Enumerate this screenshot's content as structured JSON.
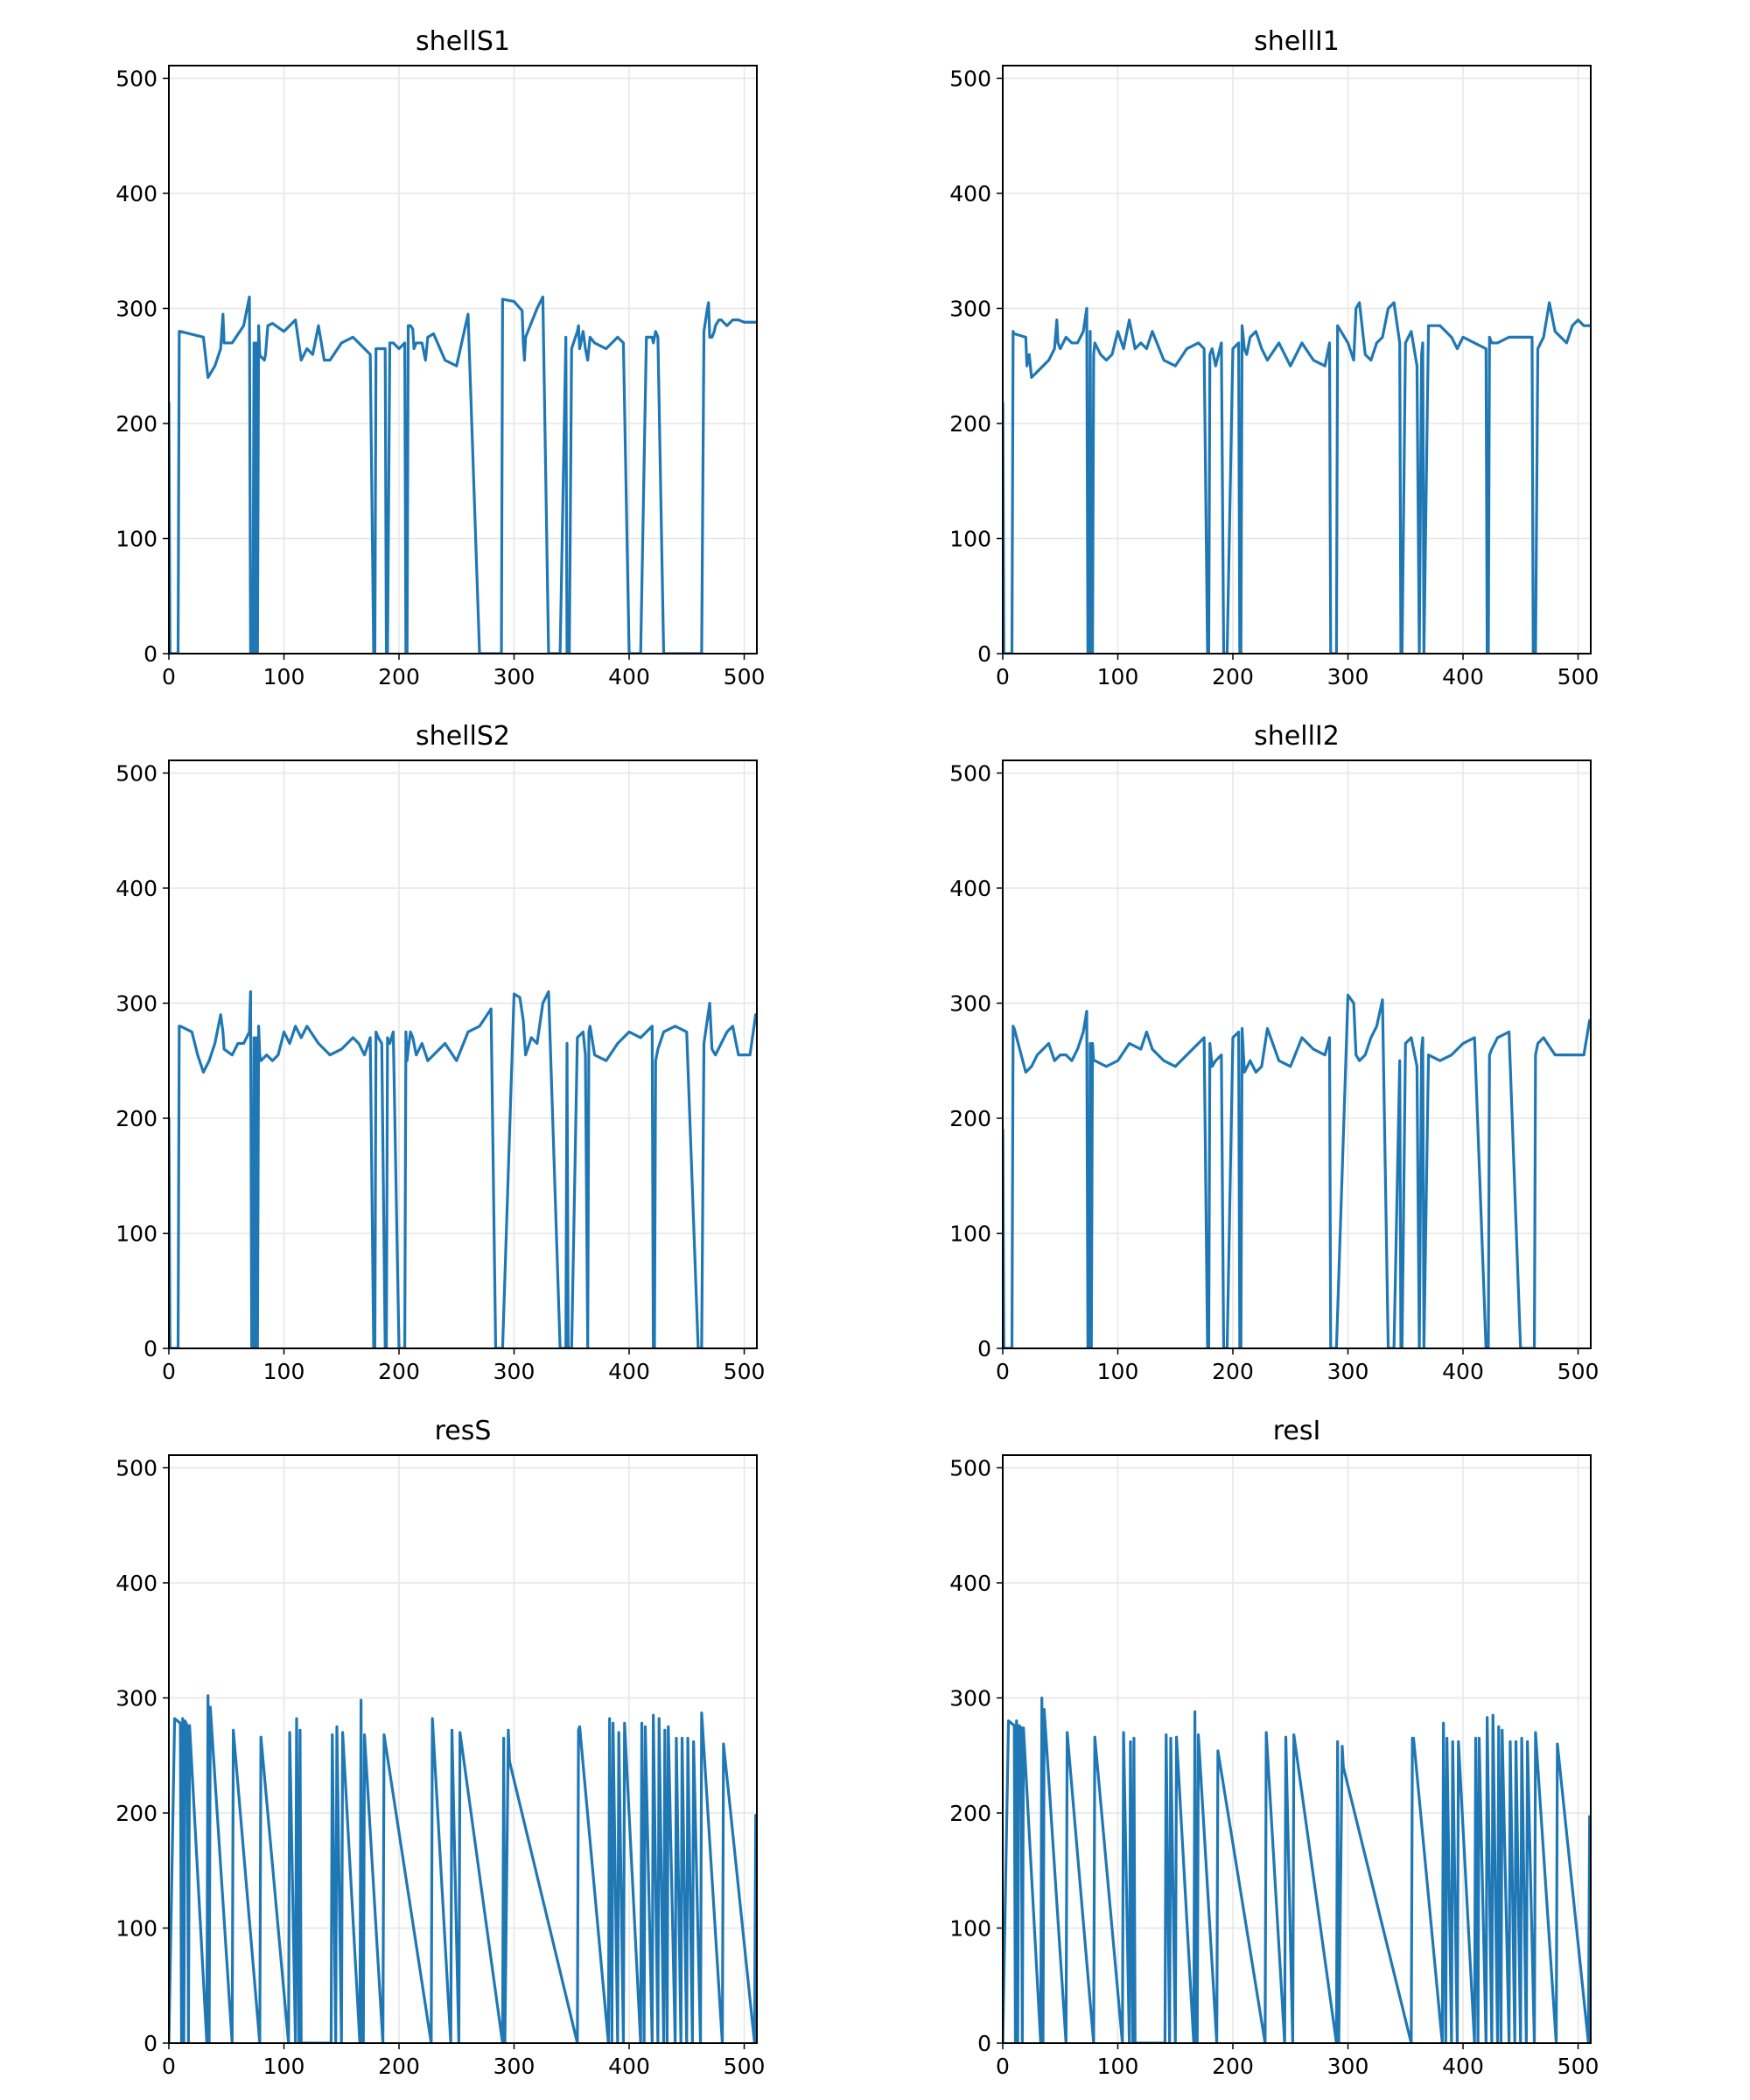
{
  "figure": {
    "line_color": "#1f77b4",
    "grid": true
  },
  "chart_data": [
    {
      "type": "line",
      "title": "shellS1",
      "xlim": [
        0,
        511
      ],
      "ylim": [
        0,
        511
      ],
      "xticks": [
        0,
        100,
        200,
        300,
        400,
        500
      ],
      "yticks": [
        0,
        100,
        200,
        300,
        400,
        500
      ],
      "x": [
        0,
        1,
        2,
        3,
        4,
        5,
        6,
        7,
        8,
        9,
        10,
        30,
        34,
        40,
        45,
        47,
        48,
        55,
        65,
        70,
        71,
        73,
        74,
        75,
        76,
        77,
        78,
        79,
        80,
        83,
        84,
        86,
        90,
        100,
        110,
        115,
        120,
        125,
        130,
        135,
        140,
        150,
        160,
        165,
        170,
        175,
        178,
        179,
        180,
        182,
        188,
        189,
        190,
        192,
        195,
        200,
        205,
        206,
        207,
        208,
        210,
        212,
        213,
        215,
        220,
        223,
        225,
        230,
        240,
        250,
        260,
        270,
        280,
        284,
        285,
        287,
        288,
        289,
        290,
        300,
        307,
        308,
        309,
        310,
        320,
        325,
        330,
        340,
        345,
        346,
        347,
        348,
        350,
        355,
        356,
        357,
        360,
        362,
        364,
        365,
        366,
        370,
        380,
        390,
        395,
        400,
        410,
        415,
        420,
        421,
        422,
        423,
        425,
        430,
        440,
        450,
        460,
        461,
        462,
        463,
        465,
        468,
        469,
        470,
        472,
        474,
        475,
        478,
        480,
        485,
        490,
        495,
        500,
        505,
        510,
        511
      ],
      "values": [
        218,
        0,
        0,
        0,
        0,
        0,
        0,
        0,
        0,
        280,
        280,
        275,
        240,
        250,
        265,
        295,
        270,
        270,
        285,
        310,
        0,
        0,
        270,
        0,
        270,
        0,
        285,
        260,
        258,
        255,
        260,
        285,
        287,
        280,
        290,
        255,
        265,
        260,
        285,
        255,
        255,
        270,
        275,
        270,
        265,
        260,
        0,
        0,
        265,
        265,
        265,
        0,
        0,
        270,
        270,
        265,
        270,
        0,
        0,
        285,
        285,
        282,
        265,
        270,
        270,
        255,
        275,
        278,
        255,
        250,
        295,
        0,
        0,
        0,
        0,
        0,
        0,
        0,
        308,
        306,
        298,
        270,
        255,
        275,
        300,
        310,
        0,
        0,
        275,
        0,
        0,
        0,
        265,
        280,
        285,
        265,
        280,
        265,
        255,
        265,
        275,
        270,
        265,
        275,
        270,
        0,
        0,
        275,
        275,
        270,
        275,
        280,
        275,
        0,
        0,
        0,
        0,
        0,
        0,
        0,
        280,
        300,
        305,
        275,
        275,
        280,
        285,
        290,
        290,
        285,
        290,
        290,
        288,
        288,
        288,
        288
      ],
      "xlabel": "",
      "ylabel": ""
    },
    {
      "type": "line",
      "title": "shellI1",
      "xlim": [
        0,
        511
      ],
      "ylim": [
        0,
        511
      ],
      "xticks": [
        0,
        100,
        200,
        300,
        400,
        500
      ],
      "yticks": [
        0,
        100,
        200,
        300,
        400,
        500
      ],
      "x": [
        0,
        1,
        2,
        3,
        4,
        5,
        6,
        7,
        8,
        9,
        10,
        20,
        21,
        23,
        25,
        30,
        40,
        45,
        47,
        48,
        50,
        55,
        60,
        65,
        70,
        73,
        74,
        75,
        76,
        77,
        78,
        79,
        80,
        85,
        90,
        95,
        100,
        105,
        110,
        115,
        120,
        125,
        130,
        140,
        150,
        160,
        170,
        175,
        178,
        179,
        180,
        182,
        185,
        190,
        192,
        195,
        200,
        205,
        206,
        207,
        208,
        210,
        212,
        215,
        220,
        225,
        230,
        240,
        250,
        260,
        270,
        280,
        284,
        285,
        287,
        288,
        289,
        290,
        291,
        300,
        305,
        307,
        310,
        315,
        320,
        325,
        330,
        335,
        340,
        345,
        346,
        347,
        350,
        355,
        360,
        362,
        364,
        365,
        366,
        370,
        380,
        390,
        395,
        400,
        410,
        420,
        421,
        422,
        423,
        425,
        430,
        440,
        450,
        460,
        461,
        462,
        463,
        465,
        470,
        475,
        480,
        485,
        490,
        495,
        500,
        505,
        510,
        511
      ],
      "values": [
        218,
        0,
        0,
        0,
        0,
        0,
        0,
        0,
        0,
        280,
        278,
        275,
        250,
        260,
        240,
        245,
        255,
        265,
        290,
        270,
        265,
        275,
        270,
        270,
        280,
        300,
        0,
        0,
        280,
        0,
        0,
        260,
        270,
        260,
        255,
        260,
        280,
        265,
        290,
        265,
        270,
        265,
        280,
        255,
        250,
        265,
        270,
        265,
        0,
        0,
        260,
        265,
        250,
        270,
        0,
        0,
        265,
        270,
        0,
        0,
        285,
        265,
        260,
        275,
        280,
        265,
        255,
        270,
        250,
        270,
        255,
        250,
        270,
        0,
        0,
        0,
        0,
        0,
        285,
        270,
        255,
        300,
        305,
        260,
        255,
        270,
        275,
        300,
        305,
        270,
        0,
        0,
        270,
        280,
        250,
        0,
        260,
        270,
        0,
        285,
        285,
        275,
        265,
        275,
        270,
        265,
        0,
        0,
        275,
        270,
        270,
        275,
        275,
        275,
        0,
        0,
        0,
        265,
        275,
        305,
        280,
        275,
        270,
        285,
        290,
        285,
        285,
        285
      ],
      "xlabel": "",
      "ylabel": ""
    },
    {
      "type": "line",
      "title": "shellS2",
      "xlim": [
        0,
        511
      ],
      "ylim": [
        0,
        511
      ],
      "xticks": [
        0,
        100,
        200,
        300,
        400,
        500
      ],
      "yticks": [
        0,
        100,
        200,
        300,
        400,
        500
      ],
      "x": [
        0,
        1,
        2,
        3,
        4,
        5,
        6,
        7,
        8,
        9,
        10,
        20,
        25,
        30,
        35,
        40,
        45,
        47,
        48,
        55,
        60,
        65,
        70,
        71,
        72,
        73,
        74,
        75,
        76,
        77,
        78,
        79,
        80,
        85,
        90,
        95,
        100,
        105,
        110,
        115,
        120,
        130,
        140,
        150,
        160,
        165,
        170,
        175,
        178,
        179,
        180,
        182,
        185,
        188,
        189,
        190,
        192,
        195,
        200,
        205,
        206,
        207,
        208,
        210,
        212,
        215,
        220,
        225,
        230,
        240,
        250,
        260,
        270,
        280,
        284,
        285,
        287,
        288,
        289,
        290,
        300,
        305,
        308,
        310,
        315,
        320,
        325,
        330,
        340,
        345,
        346,
        347,
        350,
        355,
        360,
        362,
        364,
        365,
        366,
        370,
        380,
        390,
        400,
        410,
        420,
        421,
        422,
        423,
        425,
        430,
        440,
        450,
        460,
        461,
        462,
        463,
        465,
        470,
        472,
        475,
        480,
        485,
        490,
        495,
        500,
        505,
        510,
        511
      ],
      "values": [
        200,
        0,
        0,
        0,
        0,
        0,
        0,
        0,
        0,
        280,
        280,
        275,
        255,
        240,
        250,
        265,
        290,
        275,
        260,
        255,
        265,
        265,
        275,
        310,
        0,
        0,
        270,
        0,
        270,
        0,
        280,
        255,
        250,
        255,
        250,
        255,
        275,
        265,
        280,
        270,
        280,
        265,
        255,
        260,
        270,
        265,
        255,
        270,
        0,
        0,
        275,
        270,
        265,
        0,
        0,
        270,
        265,
        275,
        0,
        0,
        275,
        250,
        260,
        275,
        270,
        255,
        265,
        250,
        255,
        265,
        250,
        275,
        280,
        295,
        0,
        0,
        0,
        0,
        0,
        0,
        308,
        305,
        285,
        255,
        270,
        265,
        300,
        310,
        0,
        0,
        265,
        0,
        0,
        270,
        275,
        255,
        0,
        275,
        280,
        255,
        250,
        265,
        275,
        270,
        280,
        0,
        0,
        250,
        260,
        275,
        280,
        275,
        0,
        0,
        0,
        0,
        265,
        300,
        260,
        255,
        265,
        275,
        280,
        255,
        255,
        255,
        290,
        290
      ],
      "xlabel": "",
      "ylabel": ""
    },
    {
      "type": "line",
      "title": "shellI2",
      "xlim": [
        0,
        511
      ],
      "ylim": [
        0,
        511
      ],
      "xticks": [
        0,
        100,
        200,
        300,
        400,
        500
      ],
      "yticks": [
        0,
        100,
        200,
        300,
        400,
        500
      ],
      "x": [
        0,
        1,
        2,
        3,
        4,
        5,
        6,
        7,
        8,
        9,
        10,
        20,
        25,
        30,
        40,
        45,
        50,
        55,
        60,
        65,
        70,
        73,
        74,
        75,
        76,
        77,
        78,
        79,
        80,
        90,
        100,
        110,
        120,
        125,
        130,
        140,
        150,
        160,
        170,
        175,
        178,
        179,
        180,
        182,
        185,
        190,
        192,
        195,
        200,
        205,
        206,
        207,
        208,
        210,
        215,
        220,
        225,
        230,
        240,
        250,
        260,
        270,
        280,
        284,
        285,
        287,
        288,
        289,
        290,
        300,
        305,
        307,
        310,
        315,
        320,
        325,
        330,
        335,
        340,
        345,
        346,
        347,
        350,
        355,
        360,
        362,
        364,
        365,
        366,
        370,
        380,
        390,
        400,
        410,
        420,
        421,
        422,
        423,
        425,
        430,
        440,
        450,
        460,
        461,
        462,
        463,
        465,
        470,
        480,
        490,
        500,
        505,
        510,
        511
      ],
      "values": [
        190,
        0,
        0,
        0,
        0,
        0,
        0,
        0,
        0,
        280,
        278,
        240,
        245,
        255,
        265,
        250,
        255,
        255,
        250,
        260,
        275,
        293,
        0,
        0,
        265,
        0,
        265,
        250,
        250,
        245,
        250,
        265,
        260,
        275,
        260,
        250,
        245,
        255,
        265,
        270,
        0,
        0,
        265,
        245,
        250,
        255,
        0,
        0,
        270,
        275,
        0,
        0,
        278,
        240,
        250,
        240,
        245,
        278,
        250,
        245,
        270,
        260,
        255,
        270,
        0,
        0,
        0,
        0,
        0,
        307,
        300,
        255,
        250,
        255,
        270,
        280,
        303,
        0,
        0,
        250,
        0,
        0,
        265,
        270,
        245,
        0,
        260,
        270,
        0,
        255,
        250,
        255,
        265,
        270,
        0,
        0,
        0,
        255,
        260,
        270,
        275,
        0,
        0,
        0,
        0,
        255,
        265,
        270,
        255,
        255,
        255,
        255,
        285,
        285
      ],
      "xlabel": "",
      "ylabel": ""
    },
    {
      "type": "line",
      "title": "resS",
      "xlim": [
        0,
        511
      ],
      "ylim": [
        0,
        511
      ],
      "xticks": [
        0,
        100,
        200,
        300,
        400,
        500
      ],
      "yticks": [
        0,
        100,
        200,
        300,
        400,
        500
      ],
      "x": [
        0,
        5,
        10,
        11,
        12,
        13,
        14,
        16,
        17,
        18,
        33,
        34,
        35,
        36,
        55,
        56,
        79,
        80,
        104,
        105,
        110,
        111,
        113,
        114,
        115,
        116,
        141,
        142,
        145,
        146,
        150,
        151,
        166,
        167,
        168,
        169,
        170,
        186,
        187,
        228,
        229,
        245,
        246,
        252,
        253,
        290,
        291,
        292,
        295,
        296,
        355,
        356,
        357,
        382,
        383,
        385,
        386,
        390,
        391,
        395,
        396,
        410,
        411,
        413,
        414,
        420,
        421,
        425,
        426,
        430,
        431,
        433,
        434,
        440,
        441,
        445,
        446,
        450,
        451,
        455,
        456,
        462,
        463,
        481,
        482,
        509,
        510,
        511
      ],
      "values": [
        0,
        282,
        278,
        0,
        282,
        0,
        280,
        276,
        0,
        276,
        0,
        302,
        0,
        292,
        0,
        272,
        0,
        266,
        0,
        270,
        0,
        282,
        0,
        272,
        0,
        0,
        0,
        268,
        0,
        275,
        0,
        270,
        0,
        298,
        0,
        0,
        268,
        0,
        268,
        0,
        282,
        0,
        272,
        0,
        270,
        0,
        265,
        0,
        272,
        245,
        0,
        272,
        275,
        0,
        282,
        0,
        278,
        0,
        270,
        0,
        278,
        0,
        278,
        0,
        275,
        0,
        285,
        0,
        282,
        0,
        272,
        0,
        275,
        0,
        265,
        0,
        265,
        0,
        265,
        0,
        262,
        0,
        287,
        0,
        260,
        0,
        198,
        0
      ],
      "xlabel": "",
      "ylabel": ""
    },
    {
      "type": "line",
      "title": "resI",
      "xlim": [
        0,
        511
      ],
      "ylim": [
        0,
        511
      ],
      "xticks": [
        0,
        100,
        200,
        300,
        400,
        500
      ],
      "yticks": [
        0,
        100,
        200,
        300,
        400,
        500
      ],
      "x": [
        0,
        5,
        10,
        11,
        12,
        13,
        14,
        16,
        17,
        18,
        33,
        34,
        35,
        36,
        55,
        56,
        79,
        80,
        104,
        105,
        110,
        111,
        113,
        114,
        115,
        116,
        141,
        142,
        145,
        146,
        150,
        151,
        166,
        167,
        168,
        169,
        170,
        186,
        187,
        228,
        229,
        245,
        246,
        252,
        253,
        290,
        291,
        292,
        295,
        296,
        355,
        356,
        357,
        382,
        383,
        385,
        386,
        390,
        391,
        395,
        396,
        410,
        411,
        413,
        414,
        420,
        421,
        425,
        426,
        430,
        431,
        433,
        434,
        440,
        441,
        445,
        446,
        450,
        451,
        455,
        456,
        462,
        463,
        481,
        482,
        509,
        510,
        511
      ],
      "values": [
        0,
        280,
        276,
        0,
        280,
        0,
        276,
        274,
        0,
        274,
        0,
        300,
        0,
        290,
        0,
        270,
        0,
        266,
        0,
        270,
        0,
        262,
        0,
        265,
        0,
        0,
        0,
        268,
        0,
        265,
        0,
        266,
        0,
        288,
        0,
        0,
        268,
        0,
        254,
        0,
        270,
        0,
        266,
        0,
        268,
        0,
        262,
        0,
        258,
        240,
        0,
        265,
        265,
        0,
        278,
        0,
        265,
        0,
        262,
        0,
        262,
        0,
        265,
        0,
        265,
        0,
        283,
        0,
        285,
        0,
        275,
        0,
        272,
        0,
        262,
        0,
        262,
        0,
        265,
        0,
        262,
        0,
        270,
        0,
        260,
        0,
        197,
        0
      ],
      "xlabel": "",
      "ylabel": ""
    }
  ]
}
